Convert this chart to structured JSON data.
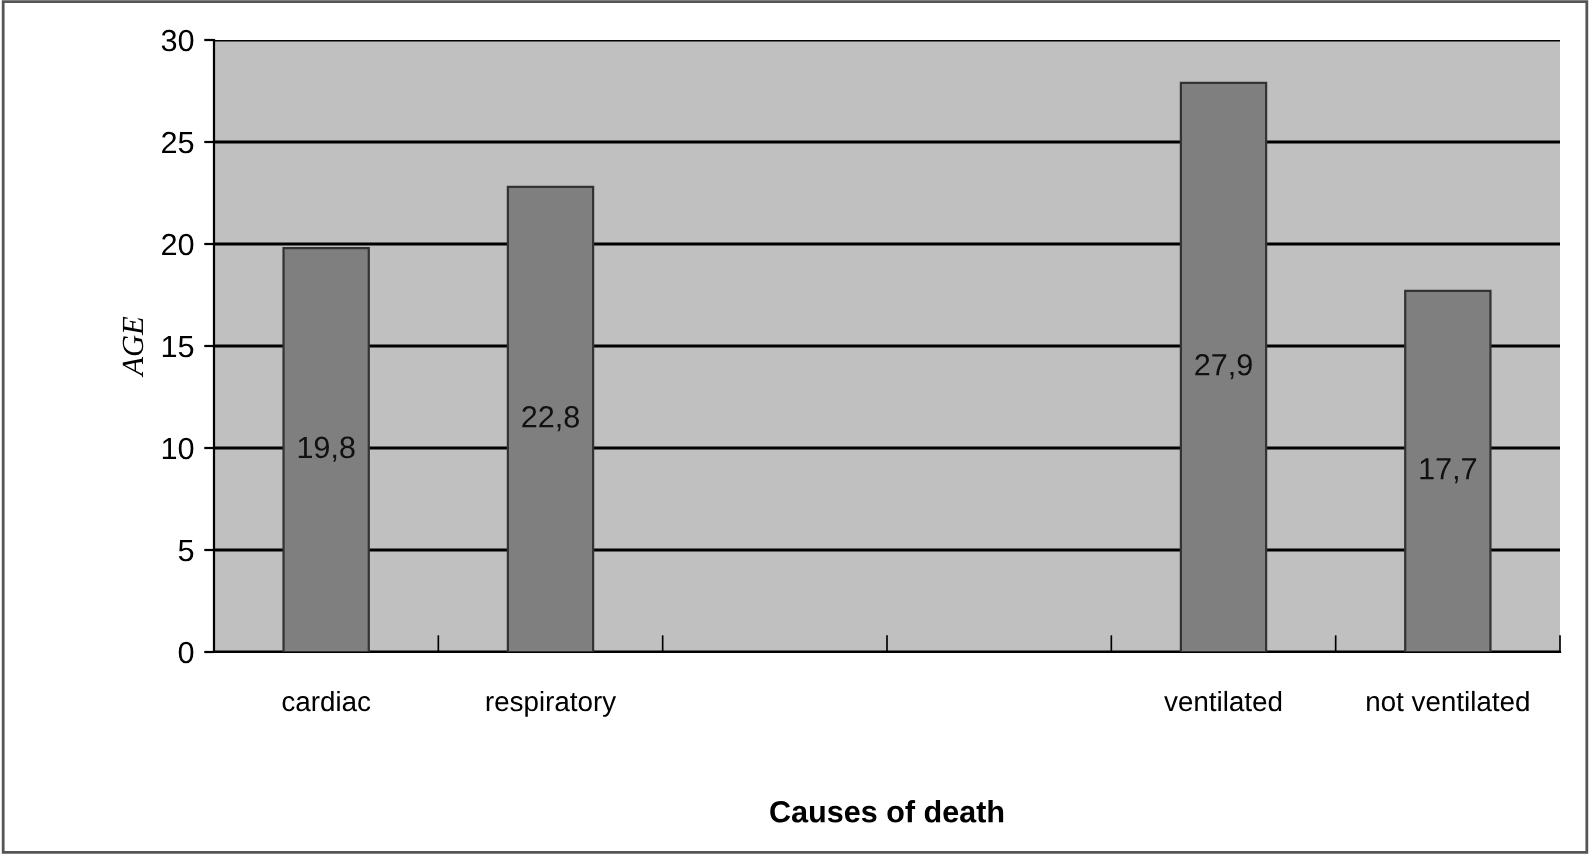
{
  "chart_data": {
    "type": "bar",
    "xlabel": "Causes of death",
    "ylabel": "AGE",
    "categories": [
      "cardiac",
      "respiratory",
      null,
      null,
      "ventilated",
      "not ventilated"
    ],
    "values": [
      19.8,
      22.8,
      null,
      null,
      27.9,
      17.7
    ],
    "value_labels": [
      "19,8",
      "22,8",
      null,
      null,
      "27,9",
      "17,7"
    ],
    "color": "#7f7f7f",
    "ylim": [
      0,
      30
    ],
    "yticks": [
      0,
      5,
      10,
      15,
      20,
      25,
      30
    ],
    "grid": "y",
    "legend": false
  }
}
